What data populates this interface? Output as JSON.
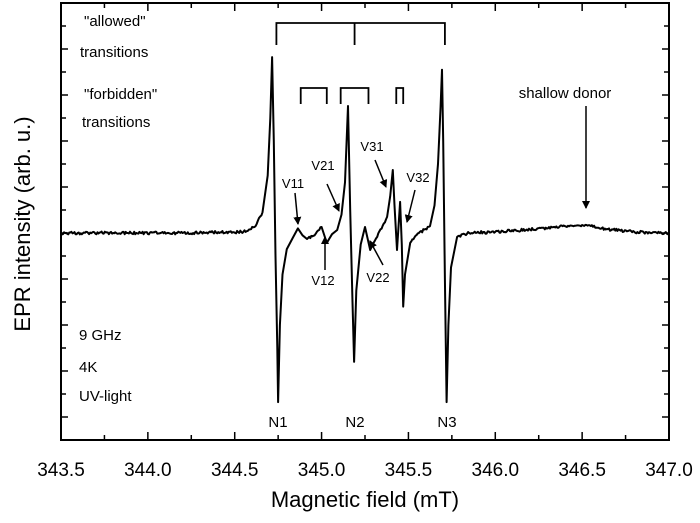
{
  "chart_data": {
    "type": "line",
    "xlabel": "Magnetic field (mT)",
    "ylabel": "EPR intensity (arb. u.)",
    "xlim": [
      343.5,
      347.0
    ],
    "ylim": [
      -9,
      10
    ],
    "x_ticks": [
      "343.5",
      "344.0",
      "344.5",
      "345.0",
      "345.5",
      "346.0",
      "346.5",
      "347.0"
    ],
    "y_tick_labels": "none",
    "grid": false,
    "legend": "none",
    "line_color": "#000000",
    "series": [
      {
        "points": [
          [
            343.5,
            0
          ],
          [
            343.8,
            0
          ],
          [
            344.2,
            0
          ],
          [
            344.55,
            0.05
          ],
          [
            344.62,
            0.3
          ],
          [
            344.66,
            0.9
          ],
          [
            344.69,
            2.5
          ],
          [
            344.705,
            5.0
          ],
          [
            344.715,
            7.65
          ],
          [
            344.725,
            4
          ],
          [
            344.735,
            -1
          ],
          [
            344.745,
            -5
          ],
          [
            344.75,
            -7.35
          ],
          [
            344.76,
            -4
          ],
          [
            344.775,
            -1.8
          ],
          [
            344.8,
            -0.7
          ],
          [
            344.835,
            -0.2
          ],
          [
            344.864,
            0.2
          ],
          [
            344.89,
            -0.1
          ],
          [
            344.916,
            -0.26
          ],
          [
            344.96,
            -0.1
          ],
          [
            345.0,
            0.26
          ],
          [
            345.03,
            -0.43
          ],
          [
            345.06,
            -0.05
          ],
          [
            345.09,
            0.13
          ],
          [
            345.115,
            0.8
          ],
          [
            345.135,
            2.2
          ],
          [
            345.152,
            5.52
          ],
          [
            345.165,
            1
          ],
          [
            345.178,
            -3
          ],
          [
            345.187,
            -5.6
          ],
          [
            345.2,
            -2.5
          ],
          [
            345.225,
            -0.5
          ],
          [
            345.25,
            0.26
          ],
          [
            345.28,
            -0.74
          ],
          [
            345.32,
            -0.17
          ],
          [
            345.377,
            0.7
          ],
          [
            345.395,
            1.6
          ],
          [
            345.41,
            2.74
          ],
          [
            345.42,
            1.2
          ],
          [
            345.434,
            -0.74
          ],
          [
            345.452,
            1.35
          ],
          [
            345.462,
            -0.5
          ],
          [
            345.47,
            -3.2
          ],
          [
            345.48,
            -1.8
          ],
          [
            345.51,
            -0.43
          ],
          [
            345.56,
            0
          ],
          [
            345.624,
            0.3
          ],
          [
            345.65,
            1.2
          ],
          [
            345.67,
            3
          ],
          [
            345.685,
            5.5
          ],
          [
            345.693,
            7.1
          ],
          [
            345.7,
            4
          ],
          [
            345.71,
            -2
          ],
          [
            345.72,
            -7.35
          ],
          [
            345.73,
            -4
          ],
          [
            345.745,
            -1.5
          ],
          [
            345.78,
            -0.17
          ],
          [
            345.85,
            0
          ],
          [
            346.0,
            0.05
          ],
          [
            346.2,
            0.15
          ],
          [
            346.4,
            0.3
          ],
          [
            346.5,
            0.35
          ],
          [
            346.55,
            0.3
          ],
          [
            346.6,
            0.2
          ],
          [
            346.8,
            0.05
          ],
          [
            347.0,
            0
          ]
        ]
      }
    ],
    "allowed_bracket_fields": [
      344.74,
      345.19,
      345.71
    ],
    "forbidden_bracket_fields": [
      [
        344.88,
        345.03
      ],
      [
        345.11,
        345.27
      ],
      [
        345.43,
        345.47
      ]
    ],
    "annotations": {
      "allowed_1": "\"allowed\"",
      "allowed_2": "transitions",
      "forbidden_1": "\"forbidden\"",
      "forbidden_2": "transitions",
      "freq": "9 GHz",
      "temp": "4K",
      "light": "UV-light",
      "shallow_donor": "shallow donor",
      "N1": "N1",
      "N2": "N2",
      "N3": "N3",
      "V11": "V11",
      "V12": "V12",
      "V21": "V21",
      "V22": "V22",
      "V31": "V31",
      "V32": "V32"
    }
  }
}
